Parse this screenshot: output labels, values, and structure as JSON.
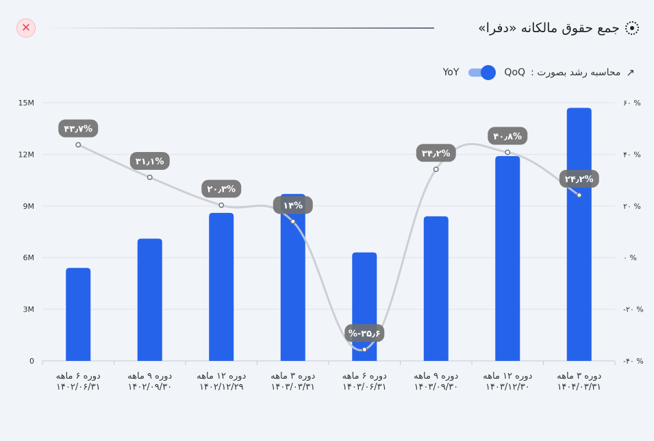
{
  "header": {
    "title": "جمع حقوق مالکانه «دفرا»",
    "title_icon": "dotted-circle-icon",
    "close_icon": "close-icon"
  },
  "toggle": {
    "label": "محاسبه رشد بصورت :",
    "option_on": "QoQ",
    "option_off": "YoY",
    "state": "QoQ",
    "icon": "trend-up-icon"
  },
  "colors": {
    "bar": "#2563eb",
    "line": "#c9cbd0",
    "label_bg": "#6f6f6f",
    "close": "#e0475b"
  },
  "chart_data": {
    "type": "bar",
    "categories": [
      [
        "دوره ۶ ماهه",
        "۱۴۰۲/۰۶/۳۱"
      ],
      [
        "دوره ۹ ماهه",
        "۱۴۰۲/۰۹/۳۰"
      ],
      [
        "دوره ۱۲ ماهه",
        "۱۴۰۲/۱۲/۲۹"
      ],
      [
        "دوره ۳ ماهه",
        "۱۴۰۳/۰۳/۳۱"
      ],
      [
        "دوره ۶ ماهه",
        "۱۴۰۳/۰۶/۳۱"
      ],
      [
        "دوره ۹ ماهه",
        "۱۴۰۳/۰۹/۳۰"
      ],
      [
        "دوره ۱۲ ماهه",
        "۱۴۰۳/۱۲/۳۰"
      ],
      [
        "دوره ۳ ماهه",
        "۱۴۰۴/۰۳/۳۱"
      ]
    ],
    "values": [
      5.4,
      7.1,
      8.6,
      9.7,
      6.3,
      8.4,
      11.9,
      14.7
    ],
    "growth": [
      43.7,
      31.1,
      20.3,
      14,
      -35.6,
      34.2,
      40.8,
      24.2
    ],
    "growth_labels": [
      "۴۳٫۷%",
      "۳۱٫۱%",
      "۲۰٫۳%",
      "۱۴%",
      "%-۳۵٫۶",
      "۳۴٫۲%",
      "۴۰٫۸%",
      "۲۴٫۲%"
    ],
    "ylim": [
      0,
      15
    ],
    "y2lim": [
      -40,
      60
    ],
    "y_ticks": [
      0,
      3,
      6,
      9,
      12,
      15
    ],
    "y_tick_labels": [
      "0",
      "3M",
      "6M",
      "9M",
      "12M",
      "15M"
    ],
    "y2_ticks": [
      -40,
      -20,
      0,
      20,
      40,
      60
    ],
    "y2_tick_labels": [
      "-۴۰ %",
      "-۲۰ %",
      "۰ %",
      "۲۰ %",
      "۴۰ %",
      "۶۰ %"
    ],
    "grid": true
  }
}
